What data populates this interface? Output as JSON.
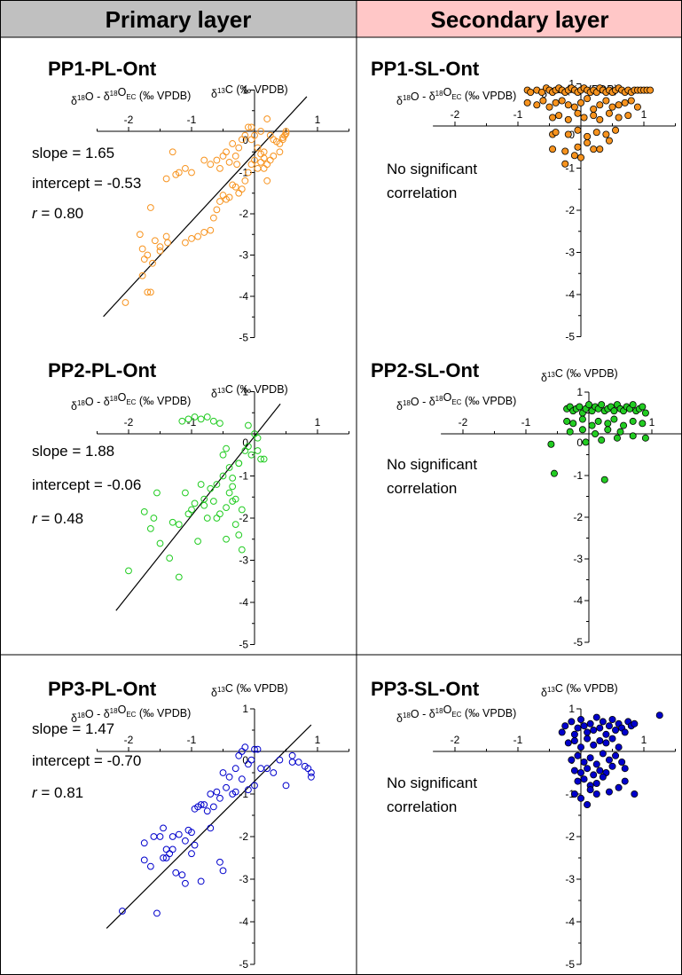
{
  "headers": {
    "primary": "Primary layer",
    "secondary": "Secondary layer"
  },
  "colors": {
    "primary_header_bg": "#c0c0c0",
    "secondary_header_bg": "#ffc7c7",
    "pp1": "#f7931e",
    "pp2": "#22cc22",
    "pp3": "#0000cc"
  },
  "chart_data": [
    {
      "id": "pp1-pl",
      "type": "scatter",
      "title": "PP1-PL-Ont",
      "xlabel_html": "δ<sup>18</sup>O - δ<sup>18</sup>O<sub>EC</sub> (‰ VPDB)",
      "ylabel_html": "δ<sup>13</sup>C (‰ VPDB)",
      "xlim": [
        -2.5,
        1.5
      ],
      "ylim": [
        -5,
        1
      ],
      "xticks": [
        -2,
        -1,
        1
      ],
      "yticks": [
        0,
        -1,
        -2,
        -3,
        -4,
        -5,
        1
      ],
      "marker": "open",
      "color": "#f7931e",
      "fit": {
        "slope": 1.65,
        "intercept": -0.53,
        "x_range": [
          -2.4,
          0.83
        ]
      },
      "stats": [
        {
          "label": "slope = ",
          "value": "1.65",
          "italic": false
        },
        {
          "label": "intercept = ",
          "value": "-0.53",
          "italic": false
        },
        {
          "label": "r",
          "value": " = 0.80",
          "italic": true
        }
      ],
      "x": [
        -2.05,
        -1.65,
        -1.7,
        -1.62,
        -1.78,
        -1.5,
        -1.5,
        -1.4,
        -1.38,
        -1.58,
        -1.82,
        -1.78,
        -1.75,
        -1.7,
        -1.65,
        -1.4,
        -1.25,
        -1.1,
        -1.0,
        -0.8,
        -0.7,
        -0.6,
        -0.55,
        -0.5,
        -0.45,
        -0.4,
        -0.35,
        -0.3,
        -0.28,
        -0.25,
        -0.2,
        -0.15,
        -0.1,
        -0.05,
        0.0,
        0.05,
        0.1,
        0.15,
        0.2,
        0.25,
        0.3,
        0.35,
        0.4,
        0.45,
        0.48,
        0.5,
        0.5,
        0.45,
        0.4,
        0.3,
        0.25,
        0.2,
        0.15,
        0.1,
        0.05,
        0.0,
        -0.05,
        -0.1,
        -0.15,
        -0.2,
        -0.25,
        -0.3,
        -0.35,
        -0.4,
        -0.45,
        -0.5,
        -0.55,
        -0.6,
        -0.65,
        -0.7,
        -0.8,
        -0.9,
        -1.0,
        -1.1,
        -1.2,
        -1.3,
        0.15,
        0.1,
        -0.05,
        0.2
      ],
      "y": [
        -4.15,
        -3.9,
        -3.9,
        -3.2,
        -3.5,
        -2.9,
        -2.8,
        -2.55,
        -2.7,
        -2.65,
        -2.5,
        -2.85,
        -3.1,
        -3.0,
        -1.85,
        -1.15,
        -1.05,
        -0.9,
        -1.0,
        -0.7,
        -0.8,
        -0.7,
        -0.9,
        -0.6,
        -0.5,
        -0.75,
        -0.3,
        -0.6,
        -0.8,
        -0.4,
        -0.2,
        -0.1,
        0.1,
        -0.2,
        -0.1,
        -0.4,
        0.0,
        -0.5,
        0.3,
        -0.1,
        -0.2,
        -0.25,
        -0.3,
        -0.2,
        -0.1,
        -0.05,
        0.0,
        -0.15,
        -0.5,
        -0.6,
        -0.7,
        -0.8,
        -0.9,
        -0.75,
        -0.9,
        -0.7,
        -0.8,
        -1.0,
        -1.2,
        -1.4,
        -1.5,
        -1.35,
        -1.3,
        -1.6,
        -1.65,
        -1.55,
        -1.7,
        -1.9,
        -2.1,
        -2.4,
        -2.45,
        -2.55,
        -2.6,
        -2.7,
        -1.0,
        -0.5,
        -0.65,
        -0.55,
        0.1,
        -1.2
      ]
    },
    {
      "id": "pp1-sl",
      "type": "scatter",
      "title": "PP1-SL-Ont",
      "xlabel_html": "δ<sup>18</sup>O - δ<sup>18</sup>O<sub>EC</sub> (‰ VPDB)",
      "ylabel_html": "δ<sup>13</sup>C (‰ VPDB)",
      "xlim": [
        -2.35,
        1.5
      ],
      "ylim": [
        -5,
        1
      ],
      "xticks": [
        -2,
        -1,
        1
      ],
      "yticks": [
        0,
        -1,
        -2,
        -3,
        -4,
        -5,
        1
      ],
      "marker": "filled",
      "color": "#f7931e",
      "note": [
        "No significant",
        "correlation"
      ],
      "x": [
        -0.85,
        -0.8,
        -0.7,
        -0.62,
        -0.55,
        -0.5,
        -0.45,
        -0.4,
        -0.35,
        -0.3,
        -0.25,
        -0.2,
        -0.15,
        -0.1,
        -0.05,
        0.0,
        0.05,
        0.1,
        0.15,
        0.2,
        0.25,
        0.3,
        0.35,
        0.4,
        0.45,
        0.5,
        0.55,
        0.6,
        0.65,
        0.7,
        0.75,
        0.8,
        0.85,
        0.9,
        0.95,
        1.0,
        1.05,
        1.1,
        -0.85,
        -0.7,
        -0.6,
        -0.5,
        -0.4,
        -0.3,
        -0.2,
        -0.1,
        0.0,
        0.1,
        0.2,
        0.3,
        0.4,
        0.5,
        0.6,
        0.7,
        0.8,
        0.9,
        -0.45,
        -0.35,
        -0.2,
        -0.05,
        0.05,
        0.2,
        0.3,
        0.45,
        0.6,
        0.75,
        -0.45,
        -0.4,
        -0.2,
        -0.05,
        0.1,
        0.25,
        0.4,
        0.55,
        -0.45,
        -0.25,
        -0.05,
        0.2,
        -0.25,
        0.0,
        -0.1,
        0.1,
        0.3,
        0.45
      ],
      "y": [
        0.85,
        0.8,
        0.85,
        0.8,
        0.9,
        0.85,
        0.8,
        0.85,
        0.9,
        0.85,
        0.8,
        0.85,
        0.9,
        0.85,
        0.8,
        0.85,
        0.9,
        0.85,
        0.8,
        0.85,
        0.8,
        0.9,
        0.85,
        0.8,
        0.85,
        0.8,
        0.85,
        0.9,
        0.85,
        0.8,
        0.85,
        0.8,
        0.85,
        0.85,
        0.85,
        0.85,
        0.85,
        0.85,
        0.55,
        0.5,
        0.6,
        0.45,
        0.55,
        0.6,
        0.5,
        0.45,
        0.55,
        0.65,
        0.4,
        0.5,
        0.6,
        0.45,
        0.5,
        0.55,
        0.6,
        0.45,
        0.2,
        0.25,
        0.15,
        0.3,
        0.2,
        0.25,
        0.15,
        0.3,
        0.2,
        0.25,
        -0.2,
        -0.15,
        -0.2,
        -0.1,
        -0.25,
        -0.15,
        -0.2,
        -0.1,
        -0.55,
        -0.6,
        -0.5,
        -0.55,
        -0.9,
        -0.75,
        -0.7,
        -0.4,
        -0.55,
        -0.35
      ]
    },
    {
      "id": "pp2-pl",
      "type": "scatter",
      "title": "PP2-PL-Ont",
      "xlabel_html": "δ<sup>18</sup>O - δ<sup>18</sup>O<sub>EC</sub> (‰ VPDB)",
      "ylabel_html": "δ<sup>13</sup>C (‰ VPDB)",
      "xlim": [
        -2.5,
        1.5
      ],
      "ylim": [
        -5,
        1
      ],
      "xticks": [
        -2,
        -1,
        1
      ],
      "yticks": [
        0,
        -1,
        -2,
        -3,
        -4,
        -5,
        1
      ],
      "marker": "open",
      "color": "#22cc22",
      "fit": {
        "slope": 1.88,
        "intercept": -0.06,
        "x_range": [
          -2.2,
          0.41
        ]
      },
      "stats": [
        {
          "label": "slope = ",
          "value": "1.88",
          "italic": false
        },
        {
          "label": "intercept = ",
          "value": "-0.06",
          "italic": false
        },
        {
          "label": "r",
          "value": " = 0.48",
          "italic": true
        }
      ],
      "x": [
        -2.0,
        -1.75,
        -1.65,
        -1.6,
        -1.55,
        -1.35,
        -1.5,
        -1.3,
        -1.2,
        -1.1,
        -1.05,
        -0.95,
        -0.9,
        -0.85,
        -0.8,
        -0.75,
        -0.7,
        -0.65,
        -0.6,
        -0.55,
        -0.5,
        -0.45,
        -0.4,
        -0.35,
        -0.3,
        -0.25,
        -0.2,
        -0.15,
        -0.1,
        -0.05,
        0.0,
        0.05,
        0.1,
        0.15,
        -1.15,
        -1.05,
        -0.95,
        -0.85,
        -0.75,
        -0.65,
        -0.55,
        -0.5,
        -0.45,
        -0.4,
        -0.35,
        -0.3,
        -0.25,
        -0.2,
        -0.45,
        -0.6,
        -0.8,
        -1.0,
        -1.2,
        -0.35,
        -0.25,
        -0.1,
        0.05
      ],
      "y": [
        -3.25,
        -1.85,
        -2.25,
        -2.0,
        -1.4,
        -2.95,
        -2.6,
        -2.1,
        -2.15,
        -1.4,
        -1.9,
        -1.65,
        -2.55,
        -1.2,
        -1.55,
        -2.0,
        -1.3,
        -1.6,
        -1.2,
        -1.9,
        -1.0,
        -1.75,
        -0.8,
        -1.25,
        -1.55,
        -0.7,
        -1.8,
        -0.4,
        -0.3,
        -0.5,
        0.0,
        -0.4,
        -0.6,
        -0.6,
        0.3,
        0.35,
        0.4,
        0.35,
        0.4,
        0.3,
        0.25,
        -0.5,
        -0.35,
        -1.4,
        -1.6,
        -2.15,
        -2.4,
        -2.75,
        -2.5,
        -2.0,
        -1.7,
        -1.8,
        -3.4,
        -1.05,
        -0.7,
        0.2,
        -0.1
      ]
    },
    {
      "id": "pp2-sl",
      "type": "scatter",
      "title": "PP2-SL-Ont",
      "xlabel_html": "δ<sup>18</sup>O - δ<sup>18</sup>O<sub>EC</sub> (‰ VPDB)",
      "ylabel_html": "δ<sup>13</sup>C (‰ VPDB)",
      "xlim": [
        -2.35,
        1.5
      ],
      "ylim": [
        -5,
        1
      ],
      "xticks": [
        -2,
        -1,
        1
      ],
      "yticks": [
        0,
        -1,
        -2,
        -3,
        -4,
        -5,
        1
      ],
      "marker": "filled",
      "color": "#22cc22",
      "note": [
        "No significant",
        "correlation"
      ],
      "x": [
        -0.55,
        -0.6,
        -0.35,
        -0.3,
        -0.25,
        -0.2,
        -0.15,
        -0.1,
        -0.05,
        0.0,
        0.05,
        0.1,
        0.15,
        0.2,
        0.25,
        0.3,
        0.35,
        0.4,
        0.45,
        0.5,
        0.55,
        0.6,
        0.65,
        0.7,
        0.75,
        0.8,
        0.85,
        0.9,
        -0.35,
        -0.25,
        -0.1,
        0.05,
        0.15,
        0.3,
        0.4,
        0.55,
        0.7,
        0.85,
        -0.3,
        -0.1,
        0.1,
        0.3,
        0.5,
        0.9,
        -0.05,
        0.2,
        0.45,
        0.7,
        0.25
      ],
      "y": [
        -0.95,
        -0.25,
        0.6,
        0.65,
        0.55,
        0.6,
        0.65,
        0.5,
        0.6,
        0.7,
        0.55,
        0.65,
        0.6,
        0.7,
        0.55,
        0.6,
        0.65,
        0.55,
        0.7,
        0.6,
        0.55,
        0.65,
        0.6,
        0.7,
        0.55,
        0.6,
        0.65,
        0.5,
        0.3,
        0.25,
        0.35,
        0.2,
        0.3,
        0.25,
        0.35,
        0.2,
        0.3,
        0.25,
        0.05,
        0.1,
        0.0,
        0.1,
        0.05,
        -0.1,
        -0.2,
        -0.15,
        -0.1,
        -0.05,
        -1.1
      ]
    },
    {
      "id": "pp3-pl",
      "type": "scatter",
      "title": "PP3-PL-Ont",
      "xlabel_html": "δ<sup>18</sup>O - δ<sup>18</sup>O<sub>EC</sub> (‰ VPDB)",
      "ylabel_html": "δ<sup>13</sup>C (‰ VPDB)",
      "xlim": [
        -2.5,
        1.5
      ],
      "ylim": [
        -5,
        1
      ],
      "xticks": [
        -2,
        -1,
        1
      ],
      "yticks": [
        0,
        -1,
        -2,
        -3,
        -4,
        -5,
        1
      ],
      "marker": "open",
      "color": "#0000cc",
      "fit": {
        "slope": 1.47,
        "intercept": -0.7,
        "x_range": [
          -2.35,
          0.9
        ]
      },
      "stats": [
        {
          "label": "slope = ",
          "value": "1.47",
          "italic": false
        },
        {
          "label": "intercept = ",
          "value": "-0.70",
          "italic": false
        },
        {
          "label": "r",
          "value": " = 0.81",
          "italic": true
        }
      ],
      "x": [
        -2.1,
        -1.75,
        -1.75,
        -1.65,
        -1.6,
        -1.55,
        -1.5,
        -1.45,
        -1.4,
        -1.4,
        -1.35,
        -1.3,
        -1.25,
        -1.2,
        -1.1,
        -1.05,
        -1.0,
        -0.95,
        -0.9,
        -0.85,
        -0.8,
        -0.75,
        -0.7,
        -0.65,
        -0.6,
        -0.55,
        -0.5,
        -0.45,
        -0.4,
        -0.35,
        -0.3,
        -0.25,
        -0.2,
        -0.15,
        -0.1,
        -0.05,
        0.0,
        0.05,
        0.1,
        0.2,
        0.3,
        0.4,
        0.5,
        0.6,
        0.7,
        0.8,
        0.9,
        0.9,
        0.85,
        0.6,
        -0.3,
        -0.2,
        -0.1,
        0.0,
        -0.5,
        -0.55,
        -0.7,
        -0.85,
        -1.0,
        -1.15,
        -1.3,
        -1.45,
        -0.95,
        -1.1
      ],
      "y": [
        -3.75,
        -2.55,
        -2.15,
        -2.7,
        -2.0,
        -3.8,
        -2.0,
        -1.8,
        -2.5,
        -2.3,
        -2.4,
        -2.0,
        -2.85,
        -1.95,
        -2.1,
        -1.85,
        -1.9,
        -1.35,
        -1.3,
        -1.25,
        -1.25,
        -1.4,
        -1.0,
        -1.3,
        -0.95,
        -1.1,
        -0.5,
        -0.85,
        -0.6,
        -1.0,
        -0.4,
        -0.1,
        0.0,
        0.1,
        -0.3,
        -0.2,
        0.05,
        0.05,
        -0.4,
        -0.4,
        -0.5,
        -0.2,
        -0.8,
        -0.1,
        -0.25,
        -0.35,
        -0.6,
        -0.5,
        -0.4,
        -0.25,
        -0.95,
        -0.65,
        -0.9,
        -0.8,
        -2.8,
        -2.6,
        -1.8,
        -3.05,
        -2.4,
        -2.9,
        -2.3,
        -2.5,
        -2.2,
        -3.1
      ]
    },
    {
      "id": "pp3-sl",
      "type": "scatter",
      "title": "PP3-SL-Ont",
      "xlabel_html": "δ<sup>18</sup>O - δ<sup>18</sup>O<sub>EC</sub> (‰ VPDB)",
      "ylabel_html": "δ<sup>13</sup>C (‰ VPDB)",
      "xlim": [
        -2.35,
        1.5
      ],
      "ylim": [
        -5,
        1
      ],
      "xticks": [
        -2,
        -1,
        1
      ],
      "yticks": [
        0,
        -1,
        -2,
        -3,
        -4,
        -5,
        1
      ],
      "marker": "filled",
      "color": "#0000cc",
      "note": [
        "No significant",
        "correlation"
      ],
      "x": [
        -0.3,
        -0.25,
        -0.15,
        -0.1,
        -0.05,
        0.0,
        0.05,
        0.1,
        0.15,
        0.2,
        0.25,
        0.3,
        0.35,
        0.4,
        0.45,
        0.5,
        0.55,
        0.6,
        0.65,
        0.7,
        0.75,
        0.8,
        0.85,
        1.25,
        -0.2,
        -0.1,
        0.0,
        0.1,
        0.2,
        0.3,
        0.4,
        0.5,
        0.6,
        -0.15,
        -0.05,
        0.05,
        0.15,
        0.25,
        0.35,
        0.45,
        0.55,
        0.65,
        -0.1,
        0.0,
        0.1,
        0.2,
        0.3,
        0.4,
        0.5,
        0.7,
        -0.05,
        0.05,
        0.15,
        0.25,
        0.35,
        0.6,
        0.7,
        -0.1,
        0.0,
        0.15,
        0.25,
        0.45,
        0.85,
        0.1
      ],
      "y": [
        0.45,
        0.6,
        0.7,
        0.4,
        0.55,
        0.75,
        0.6,
        0.45,
        0.65,
        0.5,
        0.8,
        0.55,
        0.7,
        0.4,
        0.6,
        0.75,
        0.5,
        0.65,
        0.55,
        0.45,
        0.7,
        0.6,
        0.65,
        0.85,
        0.2,
        0.25,
        0.1,
        0.3,
        0.15,
        0.25,
        0.2,
        0.3,
        0.1,
        -0.2,
        -0.1,
        -0.25,
        -0.15,
        -0.3,
        -0.05,
        -0.2,
        -0.1,
        -0.25,
        -0.45,
        -0.5,
        -0.4,
        -0.55,
        -0.45,
        -0.5,
        -0.35,
        -0.4,
        -0.7,
        -0.65,
        -0.8,
        -0.75,
        -0.6,
        -0.85,
        -0.7,
        -1.0,
        -1.1,
        -0.9,
        -1.0,
        -0.95,
        -1.0,
        -1.25
      ]
    }
  ]
}
